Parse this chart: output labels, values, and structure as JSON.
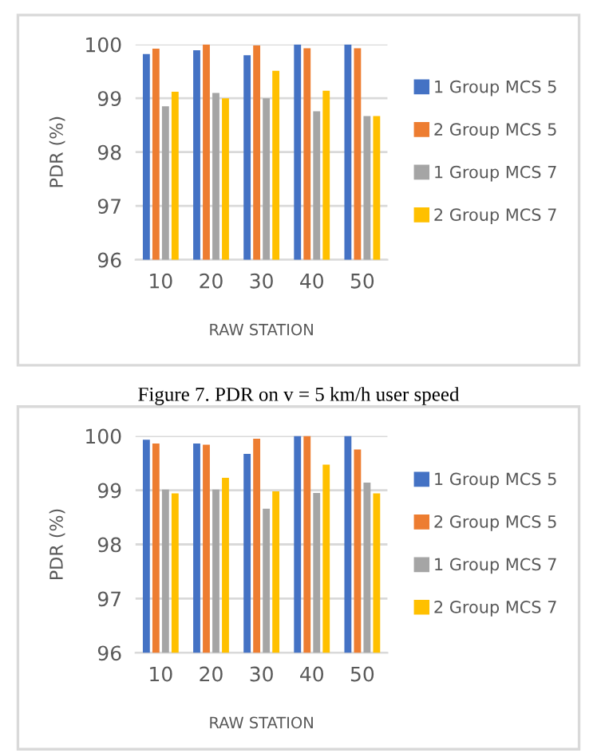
{
  "chart_data": [
    {
      "type": "bar",
      "ylabel": "PDR (%)",
      "xlabel": "RAW STATION",
      "categories": [
        "10",
        "20",
        "30",
        "40",
        "50"
      ],
      "ylim": [
        96,
        100
      ],
      "yticks": [
        96,
        97,
        98,
        99,
        100
      ],
      "grid": "y",
      "legend": "right",
      "series": [
        {
          "name": "1 Group MCS 5",
          "color": "#4472c4",
          "values": [
            99.82,
            99.89,
            99.8,
            100,
            100
          ]
        },
        {
          "name": "2 Group MCS 5",
          "color": "#ed7d31",
          "values": [
            99.92,
            100,
            99.98,
            99.93,
            99.93
          ]
        },
        {
          "name": "1 Group MCS 7",
          "color": "#a5a5a5",
          "values": [
            98.85,
            99.1,
            99.0,
            98.76,
            98.67
          ]
        },
        {
          "name": "2 Group MCS 7",
          "color": "#ffc000",
          "values": [
            99.12,
            99.0,
            99.51,
            99.14,
            98.67
          ]
        }
      ],
      "annotations": [
        "Figure 7. PDR on v = 5 km/h user speed"
      ]
    },
    {
      "type": "bar",
      "ylabel": "PDR (%)",
      "xlabel": "RAW STATION",
      "categories": [
        "10",
        "20",
        "30",
        "40",
        "50"
      ],
      "ylim": [
        96,
        100
      ],
      "yticks": [
        96,
        97,
        98,
        99,
        100
      ],
      "grid": "y",
      "legend": "right",
      "series": [
        {
          "name": "1 Group MCS 5",
          "color": "#4472c4",
          "values": [
            99.93,
            99.86,
            99.67,
            100,
            100
          ]
        },
        {
          "name": "2 Group MCS 5",
          "color": "#ed7d31",
          "values": [
            99.86,
            99.84,
            99.95,
            100,
            99.75
          ]
        },
        {
          "name": "1 Group MCS 7",
          "color": "#a5a5a5",
          "values": [
            99.01,
            99.01,
            98.66,
            98.95,
            99.14
          ]
        },
        {
          "name": "2 Group MCS 7",
          "color": "#ffc000",
          "values": [
            98.94,
            99.23,
            98.98,
            99.47,
            98.94
          ]
        }
      ]
    }
  ]
}
